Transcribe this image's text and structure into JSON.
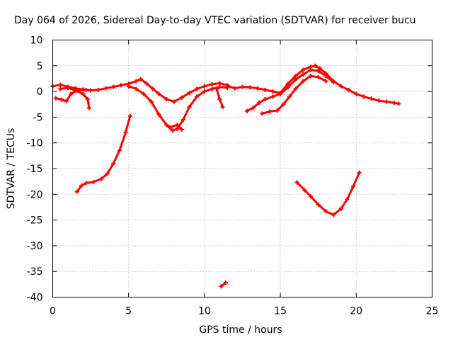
{
  "chart_data": {
    "type": "line",
    "title": "Day 064 of 2026, Sidereal Day-to-day VTEC variation (SDTVAR) for receiver bucu",
    "xlabel": "GPS time / hours",
    "ylabel": "SDTVAR / TECUs",
    "xlim": [
      0,
      25
    ],
    "ylim": [
      -40,
      10
    ],
    "xticks": [
      0,
      5,
      10,
      15,
      20,
      25
    ],
    "yticks": [
      10,
      5,
      0,
      -5,
      -10,
      -15,
      -20,
      -25,
      -30,
      -35,
      -40
    ],
    "grid": true,
    "color": "#ff0000",
    "series": [
      {
        "name": "track-1",
        "points": [
          [
            0.0,
            1.0
          ],
          [
            0.5,
            1.3
          ],
          [
            1.0,
            0.9
          ],
          [
            1.5,
            0.6
          ],
          [
            2.0,
            0.4
          ],
          [
            2.5,
            0.2
          ],
          [
            3.0,
            0.3
          ],
          [
            3.5,
            0.6
          ],
          [
            4.0,
            0.9
          ],
          [
            4.5,
            1.2
          ],
          [
            5.0,
            1.5
          ],
          [
            5.5,
            2.0
          ],
          [
            5.8,
            2.4
          ],
          [
            6.2,
            1.5
          ],
          [
            6.6,
            0.5
          ],
          [
            7.0,
            -0.5
          ],
          [
            7.5,
            -1.5
          ],
          [
            8.0,
            -2.0
          ],
          [
            8.5,
            -1.2
          ],
          [
            9.0,
            -0.3
          ],
          [
            9.5,
            0.5
          ],
          [
            10.0,
            1.0
          ],
          [
            10.5,
            1.4
          ],
          [
            11.0,
            1.6
          ],
          [
            11.5,
            1.2
          ]
        ]
      },
      {
        "name": "track-2",
        "points": [
          [
            0.2,
            -1.3
          ],
          [
            0.6,
            -1.6
          ],
          [
            0.9,
            -1.9
          ],
          [
            1.2,
            -0.5
          ],
          [
            1.6,
            0.2
          ],
          [
            2.2,
            0.3
          ]
        ]
      },
      {
        "name": "track-3",
        "points": [
          [
            0.5,
            0.5
          ],
          [
            1.0,
            0.7
          ],
          [
            1.5,
            0.2
          ],
          [
            2.0,
            -0.5
          ],
          [
            2.3,
            -1.5
          ],
          [
            2.4,
            -3.2
          ]
        ]
      },
      {
        "name": "track-4",
        "points": [
          [
            5.0,
            1.0
          ],
          [
            5.5,
            0.5
          ],
          [
            6.0,
            -0.5
          ],
          [
            6.5,
            -2.0
          ],
          [
            7.0,
            -4.5
          ],
          [
            7.5,
            -6.5
          ],
          [
            7.9,
            -7.6
          ],
          [
            8.2,
            -7.3
          ],
          [
            8.6,
            -5.5
          ],
          [
            9.0,
            -3.0
          ],
          [
            9.5,
            -1.0
          ],
          [
            10.0,
            0.0
          ],
          [
            10.5,
            0.5
          ],
          [
            11.0,
            0.9
          ],
          [
            11.5,
            0.7
          ]
        ]
      },
      {
        "name": "track-5",
        "points": [
          [
            7.7,
            -7.0
          ],
          [
            8.2,
            -6.5
          ],
          [
            8.5,
            -7.4
          ]
        ]
      },
      {
        "name": "track-6",
        "points": [
          [
            1.6,
            -19.5
          ],
          [
            1.9,
            -18.3
          ],
          [
            2.2,
            -17.8
          ],
          [
            2.7,
            -17.6
          ],
          [
            3.2,
            -17.0
          ],
          [
            3.6,
            -16.0
          ],
          [
            4.0,
            -14.0
          ],
          [
            4.4,
            -11.5
          ],
          [
            4.8,
            -8.0
          ],
          [
            5.1,
            -4.8
          ]
        ]
      },
      {
        "name": "track-7",
        "points": [
          [
            10.8,
            0.5
          ],
          [
            11.0,
            -1.5
          ],
          [
            11.2,
            -3.0
          ]
        ]
      },
      {
        "name": "track-8",
        "points": [
          [
            11.6,
            1.0
          ],
          [
            12.0,
            0.6
          ],
          [
            12.5,
            0.9
          ],
          [
            13.0,
            0.8
          ],
          [
            13.5,
            0.6
          ],
          [
            14.0,
            0.3
          ],
          [
            14.5,
            0.0
          ],
          [
            15.0,
            -0.3
          ],
          [
            15.5,
            1.5
          ],
          [
            16.0,
            3.0
          ],
          [
            16.5,
            4.2
          ],
          [
            17.0,
            4.8
          ],
          [
            17.3,
            5.0
          ],
          [
            17.6,
            4.5
          ],
          [
            18.0,
            3.5
          ],
          [
            18.5,
            2.0
          ],
          [
            19.0,
            1.0
          ],
          [
            19.5,
            0.3
          ],
          [
            20.0,
            -0.5
          ],
          [
            20.5,
            -1.0
          ],
          [
            21.0,
            -1.4
          ],
          [
            21.5,
            -1.8
          ],
          [
            22.0,
            -2.0
          ],
          [
            22.5,
            -2.2
          ],
          [
            22.8,
            -2.4
          ]
        ]
      },
      {
        "name": "track-9",
        "points": [
          [
            12.8,
            -3.8
          ],
          [
            13.2,
            -3.2
          ],
          [
            13.6,
            -2.2
          ],
          [
            14.0,
            -1.5
          ],
          [
            14.5,
            -1.0
          ],
          [
            15.0,
            -0.5
          ],
          [
            15.5,
            0.8
          ],
          [
            16.0,
            2.3
          ],
          [
            16.5,
            3.3
          ],
          [
            17.0,
            4.2
          ],
          [
            17.5,
            4.0
          ],
          [
            18.0,
            3.0
          ],
          [
            18.5,
            1.8
          ]
        ]
      },
      {
        "name": "track-10",
        "points": [
          [
            13.8,
            -4.3
          ],
          [
            14.3,
            -3.9
          ],
          [
            14.8,
            -3.7
          ],
          [
            15.2,
            -2.5
          ],
          [
            15.6,
            -1.0
          ],
          [
            16.0,
            0.5
          ],
          [
            16.5,
            2.0
          ],
          [
            17.0,
            3.0
          ],
          [
            17.5,
            2.8
          ],
          [
            18.0,
            2.0
          ]
        ]
      },
      {
        "name": "track-11",
        "points": [
          [
            16.1,
            -17.7
          ],
          [
            16.6,
            -19.2
          ],
          [
            17.0,
            -20.4
          ],
          [
            17.5,
            -22.0
          ],
          [
            18.0,
            -23.3
          ],
          [
            18.5,
            -24.0
          ],
          [
            19.0,
            -22.8
          ],
          [
            19.4,
            -21.0
          ],
          [
            19.8,
            -18.5
          ],
          [
            20.2,
            -15.8
          ]
        ]
      },
      {
        "name": "track-12",
        "points": [
          [
            11.1,
            -37.9
          ],
          [
            11.4,
            -37.2
          ]
        ]
      }
    ]
  }
}
